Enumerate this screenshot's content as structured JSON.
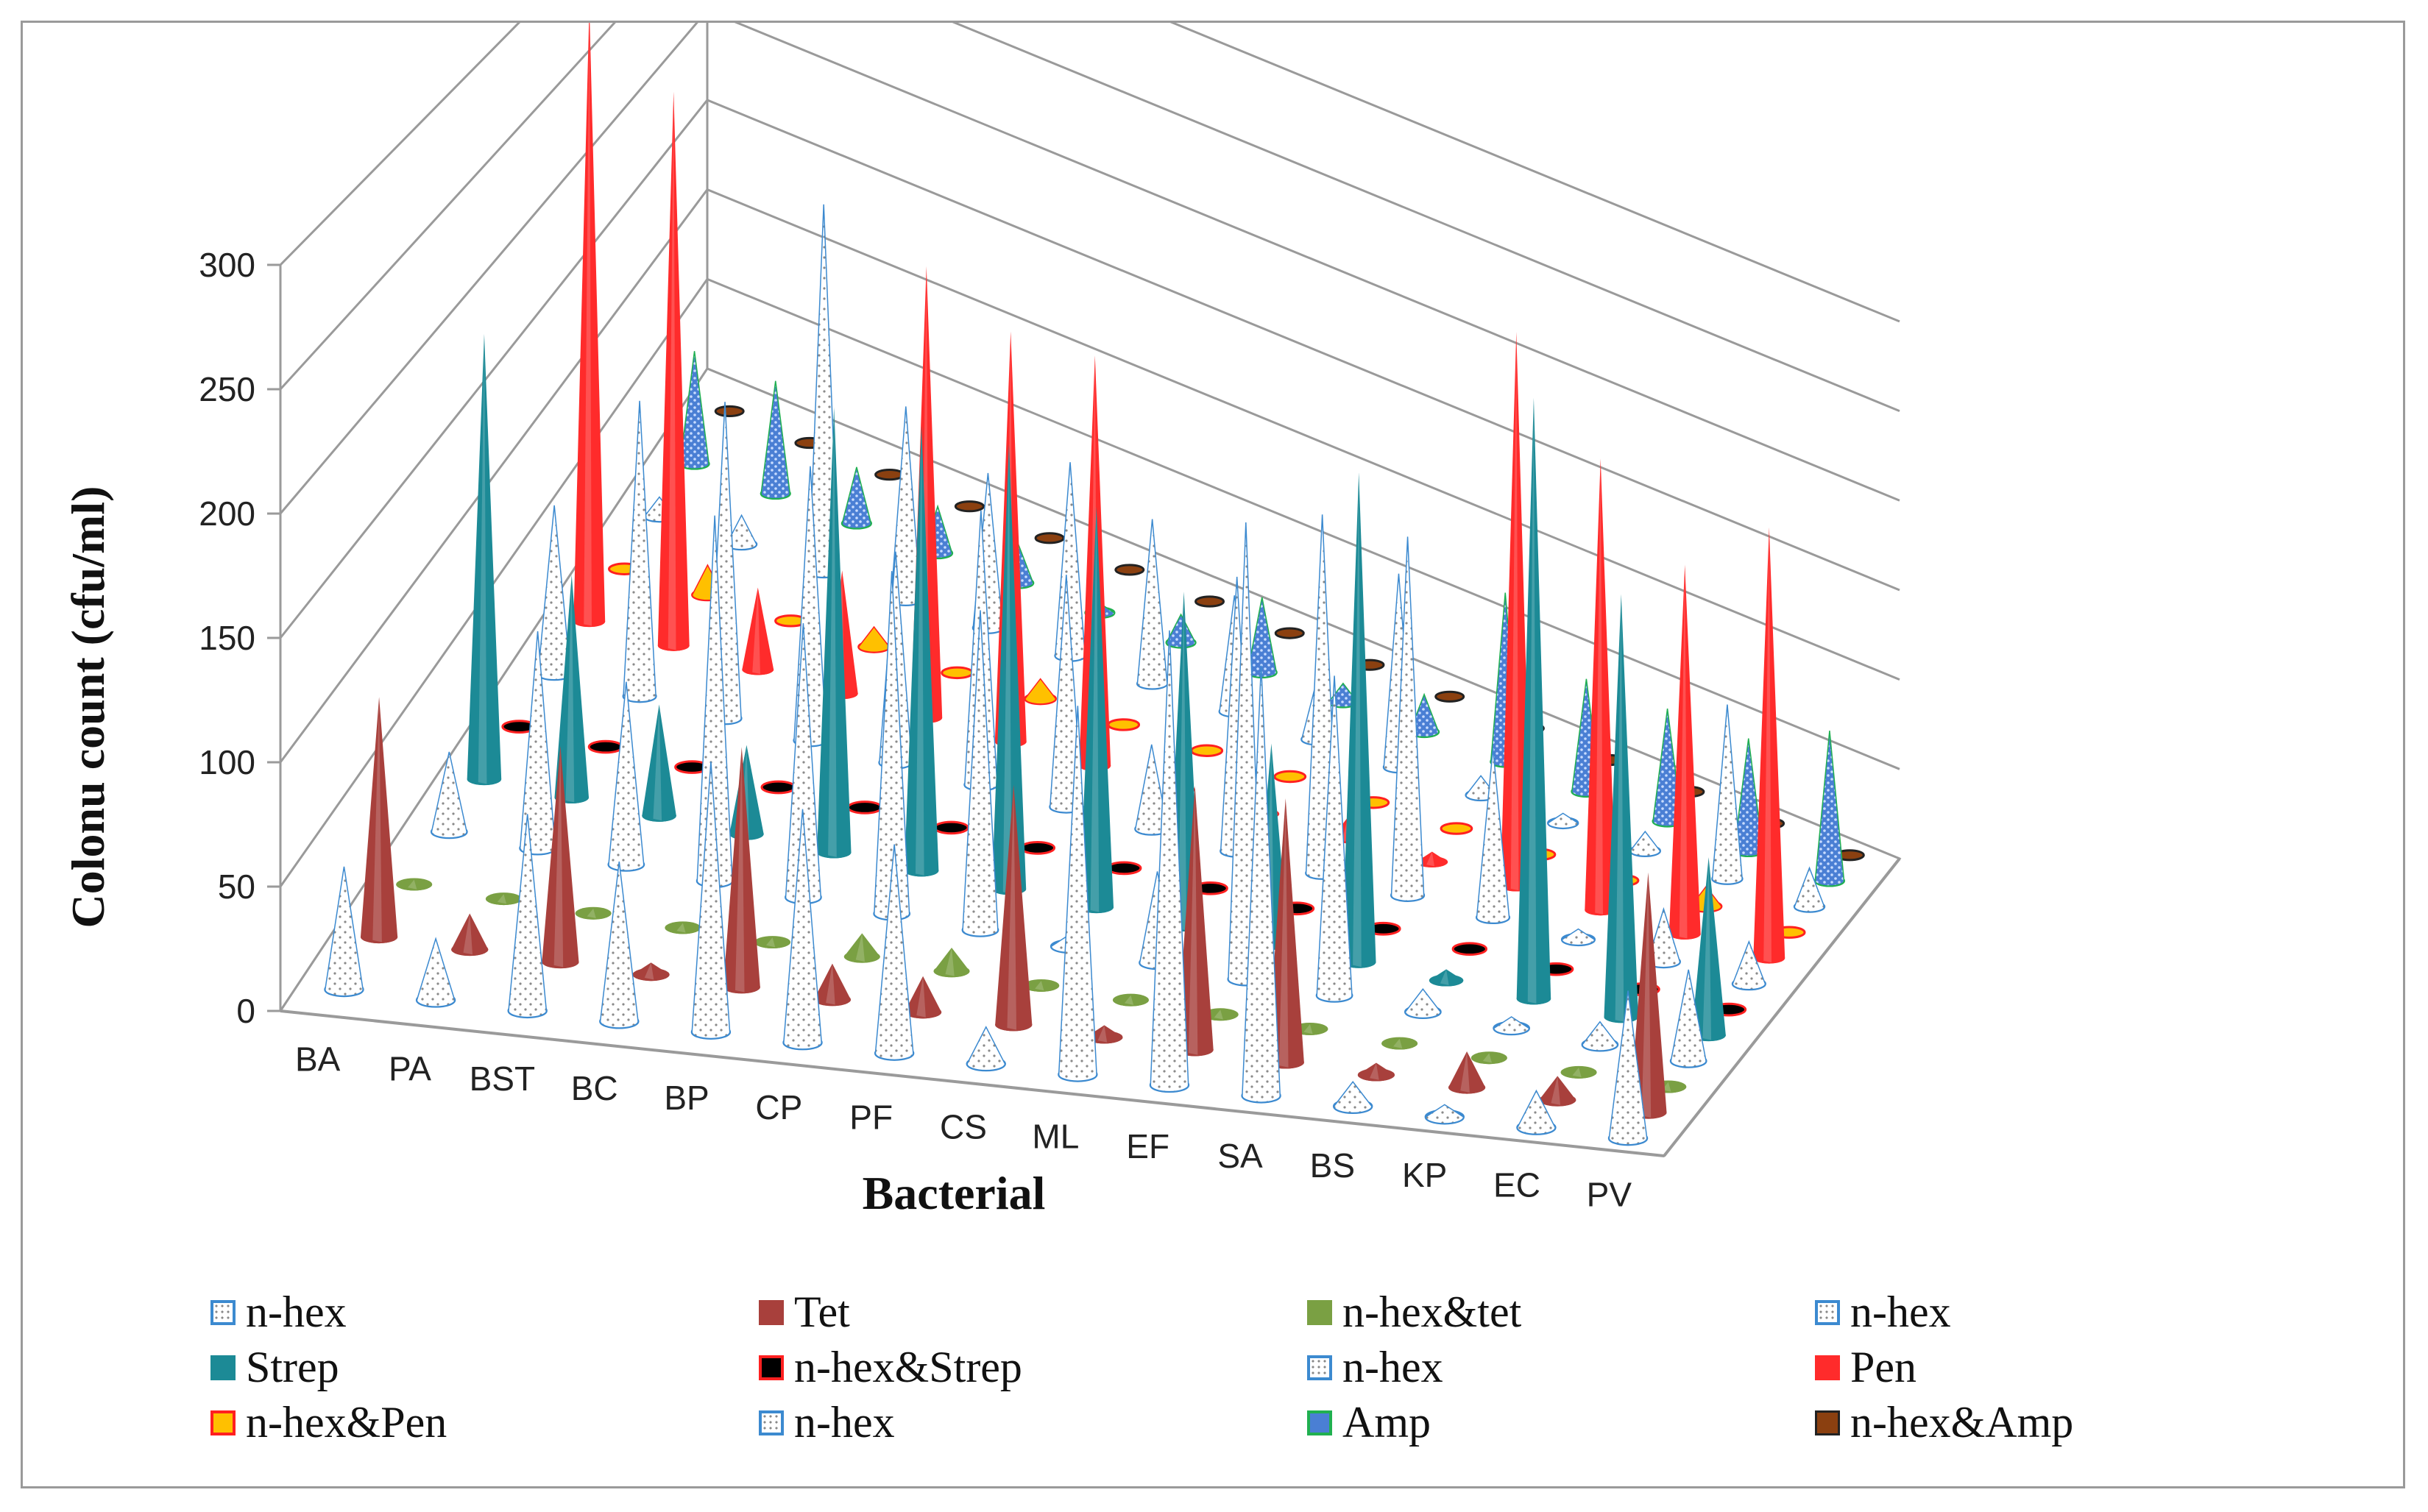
{
  "chart_data": {
    "type": "3d-cone",
    "title": "",
    "xlabel": "Bacterial",
    "ylabel": "Colonu count (cfu/ml)",
    "ylim": [
      0,
      300
    ],
    "yticks": [
      "0",
      "50",
      "100",
      "150",
      "200",
      "250",
      "300"
    ],
    "categories": [
      "BA",
      "PA",
      "BST",
      "BC",
      "BP",
      "CP",
      "PF",
      "CS",
      "ML",
      "EF",
      "SA",
      "BS",
      "KP",
      "EC",
      "PV"
    ],
    "series": [
      {
        "name": "n-hex",
        "values": [
          50,
          25,
          80,
          65,
          110,
          95,
          85,
          15,
          150,
          185,
          175,
          10,
          5,
          15,
          60
        ]
      },
      {
        "name": "Tet",
        "values": [
          100,
          15,
          90,
          5,
          100,
          15,
          15,
          100,
          5,
          110,
          110,
          5,
          15,
          10,
          100
        ]
      },
      {
        "name": "n-hex&tet",
        "values": [
          2,
          2,
          2,
          2,
          2,
          10,
          10,
          2,
          2,
          2,
          2,
          2,
          2,
          2,
          2
        ]
      },
      {
        "name": "n-hex",
        "values": [
          35,
          95,
          80,
          160,
          120,
          150,
          140,
          5,
          40,
          200,
          140,
          10,
          5,
          10,
          40
        ]
      },
      {
        "name": "Strep",
        "values": [
          200,
          100,
          50,
          40,
          200,
          200,
          200,
          180,
          150,
          90,
          220,
          5,
          270,
          190,
          80
        ]
      },
      {
        "name": "n-hex&Strep",
        "values": [
          2,
          2,
          2,
          2,
          2,
          2,
          2,
          2,
          2,
          2,
          2,
          2,
          2,
          2,
          2
        ]
      },
      {
        "name": "n-hex",
        "values": [
          80,
          140,
          150,
          130,
          100,
          130,
          110,
          40,
          130,
          170,
          170,
          80,
          5,
          25,
          20
        ]
      },
      {
        "name": "Pen",
        "values": [
          300,
          270,
          40,
          60,
          220,
          200,
          200,
          20,
          5,
          10,
          5,
          270,
          220,
          180,
          210
        ]
      },
      {
        "name": "n-hex&Pen",
        "values": [
          2,
          15,
          2,
          10,
          2,
          10,
          2,
          2,
          2,
          2,
          2,
          2,
          2,
          10,
          2
        ]
      },
      {
        "name": "n-hex",
        "values": [
          10,
          15,
          190,
          100,
          80,
          100,
          85,
          60,
          30,
          100,
          10,
          5,
          10,
          90,
          20
        ]
      },
      {
        "name": "Amp",
        "values": [
          60,
          60,
          30,
          25,
          20,
          5,
          15,
          40,
          10,
          20,
          90,
          60,
          60,
          60,
          80
        ]
      },
      {
        "name": "n-hex&Amp",
        "values": [
          2,
          2,
          2,
          2,
          2,
          2,
          2,
          2,
          2,
          2,
          2,
          2,
          2,
          2,
          2
        ]
      }
    ],
    "legend_position": "bottom"
  },
  "colors": {
    "n-hex": "#ffffff",
    "Tet": "#a8403c",
    "n-hex&tet": "#7aa043",
    "Strep": "#1c8a96",
    "n-hex&Strep": "#000000",
    "Pen": "#ff2b2b",
    "n-hex&Pen": "#ffc000",
    "Amp": "#4a7fd4",
    "n-hex&Amp": "#8b4010",
    "gridline": "#9a9a9a",
    "outline_blue": "#3c8ad0",
    "outline_red": "#ff2020",
    "outline_green": "#20b050"
  }
}
